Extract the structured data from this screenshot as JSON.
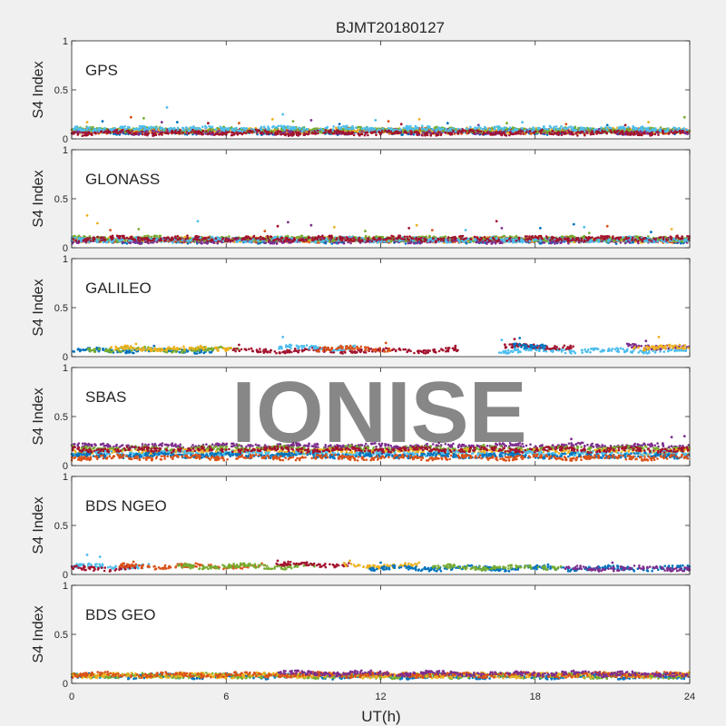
{
  "chart_data": {
    "type": "scatter",
    "title": "BJMT20180127",
    "xlabel": "UT(h)",
    "ylabel": "S4 Index",
    "xlim": [
      0,
      24
    ],
    "ylim": [
      0,
      1
    ],
    "xticks": [
      "0",
      "6",
      "12",
      "18",
      "24"
    ],
    "yticks": [
      "0",
      "0.5",
      "1"
    ],
    "watermark": "IONISE",
    "colors": [
      "#0072bd",
      "#d95319",
      "#edb120",
      "#7e2f8e",
      "#77ac30",
      "#4dbeee",
      "#a2142f"
    ],
    "panels": [
      {
        "name": "GPS",
        "series": [
          {
            "color": "#0072bd",
            "baseline": 0.07,
            "x": [
              0,
              24
            ],
            "points": [
              [
                1.2,
                0.18
              ],
              [
                4.1,
                0.17
              ],
              [
                10.4,
                0.15
              ],
              [
                14.6,
                0.16
              ],
              [
                20.8,
                0.14
              ]
            ]
          },
          {
            "color": "#d95319",
            "baseline": 0.08,
            "x": [
              0,
              24
            ],
            "points": [
              [
                2.3,
                0.22
              ],
              [
                6.5,
                0.16
              ],
              [
                12.3,
                0.18
              ],
              [
                19.2,
                0.15
              ]
            ]
          },
          {
            "color": "#edb120",
            "baseline": 0.08,
            "x": [
              0,
              24
            ],
            "points": [
              [
                0.6,
                0.17
              ],
              [
                7.8,
                0.2
              ],
              [
                13.5,
                0.2
              ],
              [
                22.4,
                0.17
              ]
            ]
          },
          {
            "color": "#7e2f8e",
            "baseline": 0.07,
            "x": [
              0,
              24
            ],
            "points": [
              [
                3.5,
                0.17
              ],
              [
                9.3,
                0.19
              ],
              [
                15.8,
                0.14
              ]
            ]
          },
          {
            "color": "#77ac30",
            "baseline": 0.09,
            "x": [
              0,
              24
            ],
            "points": [
              [
                2.8,
                0.21
              ],
              [
                8.6,
                0.18
              ],
              [
                16.9,
                0.16
              ],
              [
                23.8,
                0.22
              ]
            ]
          },
          {
            "color": "#4dbeee",
            "baseline": 0.1,
            "x": [
              0,
              24
            ],
            "points": [
              [
                3.7,
                0.32
              ],
              [
                8.2,
                0.25
              ],
              [
                11.8,
                0.19
              ],
              [
                17.5,
                0.17
              ]
            ]
          },
          {
            "color": "#a2142f",
            "baseline": 0.06,
            "x": [
              0,
              24
            ],
            "points": [
              [
                5.3,
                0.16
              ],
              [
                12.8,
                0.15
              ],
              [
                21.5,
                0.14
              ]
            ]
          }
        ]
      },
      {
        "name": "GLONASS",
        "series": [
          {
            "color": "#0072bd",
            "baseline": 0.07,
            "x": [
              0,
              24
            ],
            "points": [
              [
                18.2,
                0.2
              ],
              [
                19.5,
                0.24
              ],
              [
                22.5,
                0.16
              ]
            ]
          },
          {
            "color": "#d95319",
            "baseline": 0.08,
            "x": [
              0,
              24
            ],
            "points": [
              [
                1.5,
                0.18
              ],
              [
                7.5,
                0.17
              ],
              [
                14.0,
                0.18
              ],
              [
                20.8,
                0.22
              ]
            ]
          },
          {
            "color": "#edb120",
            "baseline": 0.08,
            "x": [
              0,
              24
            ],
            "points": [
              [
                0.6,
                0.33
              ],
              [
                1.0,
                0.25
              ],
              [
                10.2,
                0.21
              ],
              [
                13.4,
                0.23
              ],
              [
                23.3,
                0.19
              ]
            ]
          },
          {
            "color": "#7e2f8e",
            "baseline": 0.07,
            "x": [
              0,
              24
            ],
            "points": [
              [
                8.4,
                0.26
              ],
              [
                9.3,
                0.23
              ],
              [
                16.7,
                0.2
              ]
            ]
          },
          {
            "color": "#77ac30",
            "baseline": 0.09,
            "x": [
              0,
              24
            ],
            "points": [
              [
                2.6,
                0.19
              ],
              [
                11.4,
                0.17
              ],
              [
                20.1,
                0.15
              ]
            ]
          },
          {
            "color": "#4dbeee",
            "baseline": 0.08,
            "x": [
              0,
              24
            ],
            "points": [
              [
                4.9,
                0.27
              ],
              [
                15.3,
                0.18
              ],
              [
                19.9,
                0.21
              ]
            ]
          },
          {
            "color": "#a2142f",
            "baseline": 0.09,
            "x": [
              0,
              24
            ],
            "points": [
              [
                8.0,
                0.22
              ],
              [
                13.1,
                0.2
              ],
              [
                16.5,
                0.27
              ]
            ]
          }
        ]
      },
      {
        "name": "GALILEO",
        "series": [
          {
            "color": "#0072bd",
            "baseline": 0.06,
            "x": [
              0,
              5.5
            ],
            "points": [
              [
                3.2,
                0.11
              ]
            ]
          },
          {
            "color": "#77ac30",
            "baseline": 0.07,
            "x": [
              0.6,
              6.5
            ],
            "points": [
              [
                5.8,
                0.1
              ]
            ]
          },
          {
            "color": "#edb120",
            "baseline": 0.08,
            "x": [
              1.5,
              6.2
            ],
            "points": [
              [
                2.5,
                0.13
              ]
            ]
          },
          {
            "color": "#a2142f",
            "baseline": 0.06,
            "x": [
              6.2,
              15.0
            ],
            "points": [
              [
                6.5,
                0.12
              ],
              [
                14.9,
                0.11
              ]
            ]
          },
          {
            "color": "#4dbeee",
            "baseline": 0.09,
            "x": [
              8.0,
              11.0
            ],
            "points": [
              [
                8.2,
                0.2
              ]
            ]
          },
          {
            "color": "#d95319",
            "baseline": 0.08,
            "x": [
              9.5,
              12.4
            ],
            "points": [
              [
                12.2,
                0.14
              ]
            ]
          },
          {
            "color": "#4dbeee",
            "baseline": 0.06,
            "x": [
              16.6,
              24
            ],
            "points": [
              [
                16.7,
                0.17
              ]
            ]
          },
          {
            "color": "#a2142f",
            "baseline": 0.1,
            "x": [
              16.8,
              19.5
            ],
            "points": [
              [
                17.2,
                0.18
              ]
            ]
          },
          {
            "color": "#0072bd",
            "baseline": 0.11,
            "x": [
              17.0,
              18.5
            ],
            "points": [
              [
                17.4,
                0.19
              ]
            ]
          },
          {
            "color": "#7e2f8e",
            "baseline": 0.1,
            "x": [
              21.5,
              24
            ],
            "points": [
              [
                22.3,
                0.16
              ]
            ]
          },
          {
            "color": "#edb120",
            "baseline": 0.09,
            "x": [
              21.8,
              24
            ],
            "points": [
              [
                22.8,
                0.2
              ]
            ]
          }
        ]
      },
      {
        "name": "SBAS",
        "series": [
          {
            "color": "#7e2f8e",
            "baseline": 0.2,
            "x": [
              0,
              24
            ],
            "points": [
              [
                19.4,
                0.27
              ],
              [
                23.3,
                0.29
              ],
              [
                23.8,
                0.3
              ]
            ]
          },
          {
            "color": "#77ac30",
            "baseline": 0.17,
            "x": [
              0,
              24
            ],
            "points": [
              [
                6.5,
                0.21
              ],
              [
                16.0,
                0.21
              ]
            ]
          },
          {
            "color": "#edb120",
            "baseline": 0.14,
            "x": [
              0,
              24
            ],
            "points": []
          },
          {
            "color": "#4dbeee",
            "baseline": 0.12,
            "x": [
              0,
              24
            ],
            "points": []
          },
          {
            "color": "#0072bd",
            "baseline": 0.1,
            "x": [
              0,
              24
            ],
            "points": []
          },
          {
            "color": "#a2142f",
            "baseline": 0.16,
            "x": [
              0,
              24
            ],
            "points": []
          },
          {
            "color": "#d95319",
            "baseline": 0.08,
            "x": [
              0,
              24
            ],
            "points": []
          }
        ]
      },
      {
        "name": "BDS NGEO",
        "series": [
          {
            "color": "#4dbeee",
            "baseline": 0.08,
            "x": [
              0,
              3.0
            ],
            "points": [
              [
                0.6,
                0.2
              ],
              [
                1.1,
                0.18
              ]
            ]
          },
          {
            "color": "#a2142f",
            "baseline": 0.06,
            "x": [
              0,
              2.5
            ],
            "points": []
          },
          {
            "color": "#d95319",
            "baseline": 0.08,
            "x": [
              1.8,
              7.5
            ],
            "points": [
              [
                2.4,
                0.13
              ]
            ]
          },
          {
            "color": "#77ac30",
            "baseline": 0.08,
            "x": [
              4.0,
              9.5
            ],
            "points": []
          },
          {
            "color": "#a2142f",
            "baseline": 0.1,
            "x": [
              7.8,
              10.8
            ],
            "points": [
              [
                8.0,
                0.14
              ]
            ]
          },
          {
            "color": "#edb120",
            "baseline": 0.09,
            "x": [
              10.5,
              13.5
            ],
            "points": [
              [
                10.8,
                0.14
              ]
            ]
          },
          {
            "color": "#0072bd",
            "baseline": 0.06,
            "x": [
              11.5,
              24
            ],
            "points": [
              [
                12.0,
                0.12
              ],
              [
                18.5,
                0.1
              ]
            ]
          },
          {
            "color": "#77ac30",
            "baseline": 0.07,
            "x": [
              14.0,
              19.0
            ],
            "points": []
          },
          {
            "color": "#7e2f8e",
            "baseline": 0.06,
            "x": [
              19.0,
              24
            ],
            "points": [
              [
                21.0,
                0.12
              ]
            ]
          }
        ]
      },
      {
        "name": "BDS GEO",
        "series": [
          {
            "color": "#0072bd",
            "baseline": 0.07,
            "x": [
              0,
              24
            ],
            "points": []
          },
          {
            "color": "#77ac30",
            "baseline": 0.075,
            "x": [
              0,
              24
            ],
            "points": []
          },
          {
            "color": "#edb120",
            "baseline": 0.08,
            "x": [
              0,
              24
            ],
            "points": []
          },
          {
            "color": "#d95319",
            "baseline": 0.085,
            "x": [
              0,
              24
            ],
            "points": []
          },
          {
            "color": "#7e2f8e",
            "baseline": 0.1,
            "x": [
              8.0,
              20.5
            ],
            "points": []
          },
          {
            "color": "#7e2f8e",
            "baseline": 0.09,
            "x": [
              20.5,
              24
            ],
            "points": []
          }
        ]
      }
    ]
  }
}
